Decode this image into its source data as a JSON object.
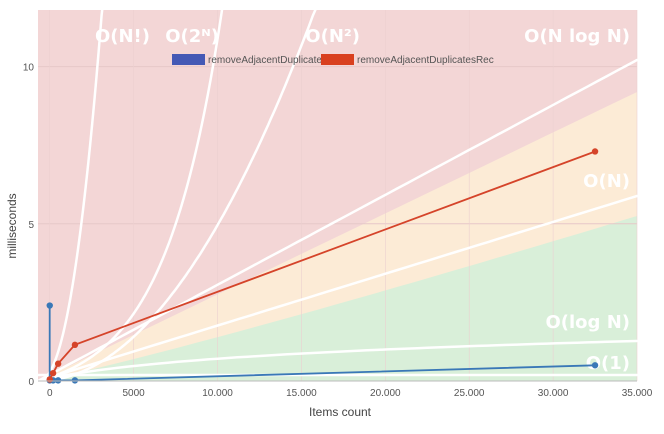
{
  "chart_data": {
    "type": "line",
    "xlabel": "Items count",
    "ylabel": "milliseconds",
    "xlim": [
      -700,
      35000
    ],
    "ylim": [
      0,
      11.8
    ],
    "x_ticks": [
      0,
      5000,
      10000,
      15000,
      20000,
      25000,
      30000,
      35000
    ],
    "x_tick_labels": [
      "0",
      "5000",
      "10.000",
      "15.000",
      "20.000",
      "25.000",
      "30.000",
      "35.000"
    ],
    "y_ticks": [
      0,
      5,
      10
    ],
    "y_tick_labels": [
      "0",
      "5",
      "10"
    ],
    "grid": true,
    "legend_position": "top",
    "series": [
      {
        "name": "removeAdjacentDuplicates",
        "color": "#3a78b7",
        "legend_color": "#4459b5",
        "points": [
          [
            0,
            2.4
          ],
          [
            0,
            0.02
          ],
          [
            200,
            0.02
          ],
          [
            500,
            0.02
          ],
          [
            1500,
            0.02
          ],
          [
            32500,
            0.5
          ]
        ]
      },
      {
        "name": "removeAdjacentDuplicatesRec",
        "color": "#d5442a",
        "legend_color": "#d9401f",
        "points": [
          [
            0,
            0.05
          ],
          [
            200,
            0.25
          ],
          [
            500,
            0.55
          ],
          [
            1500,
            1.15
          ],
          [
            32500,
            7.3
          ]
        ]
      }
    ],
    "complexity_regions": [
      {
        "label": "O(1)",
        "color": "#d9efd9"
      },
      {
        "label": "O(log N)",
        "color": "#d9efd9"
      },
      {
        "label": "O(N)",
        "color": "#fcebd6"
      },
      {
        "label": "O(N log N)",
        "color": "#f3d6d6"
      },
      {
        "label": "O(N²)",
        "color": "#f3d6d6"
      },
      {
        "label": "O(2ᴺ)",
        "color": "#f3d6d6"
      },
      {
        "label": "O(N!)",
        "color": "#f3d6d6"
      }
    ]
  }
}
